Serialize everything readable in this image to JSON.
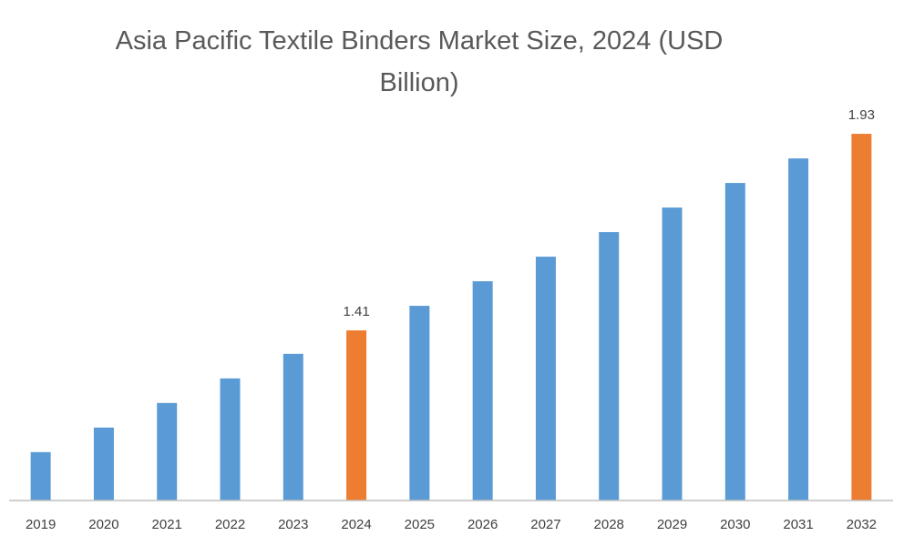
{
  "chart_data": {
    "type": "bar",
    "title": "Asia Pacific Textile Binders Market Size, 2024 (USD Billion)",
    "categories": [
      "2019",
      "2020",
      "2021",
      "2022",
      "2023",
      "2024",
      "2025",
      "2026",
      "2027",
      "2028",
      "2029",
      "2030",
      "2031",
      "2032"
    ],
    "values": [
      1.088,
      1.153,
      1.218,
      1.283,
      1.348,
      1.41,
      1.475,
      1.54,
      1.605,
      1.67,
      1.735,
      1.8,
      1.865,
      1.93
    ],
    "value_labels": [
      null,
      null,
      null,
      null,
      null,
      "1.41",
      null,
      null,
      null,
      null,
      null,
      null,
      null,
      "1.93"
    ],
    "colors": [
      "#5b9bd5",
      "#5b9bd5",
      "#5b9bd5",
      "#5b9bd5",
      "#5b9bd5",
      "#ed7d31",
      "#5b9bd5",
      "#5b9bd5",
      "#5b9bd5",
      "#5b9bd5",
      "#5b9bd5",
      "#5b9bd5",
      "#5b9bd5",
      "#ed7d31"
    ],
    "ylim": [
      0.96,
      2.0
    ]
  }
}
